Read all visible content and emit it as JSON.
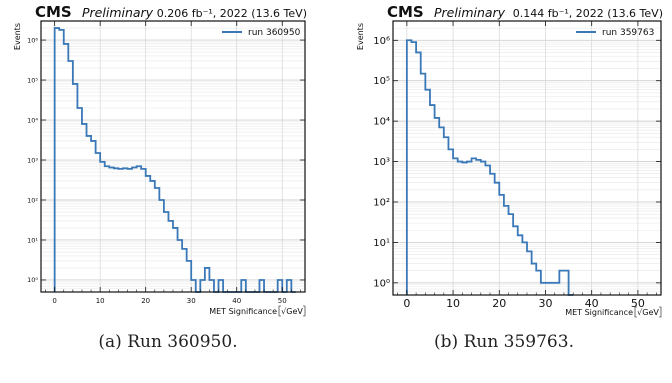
{
  "chart_data": [
    {
      "type": "histogram",
      "experiment_label": "CMS",
      "status_label": "Preliminary",
      "lumi_label": "0.206 fb⁻¹, 2022 (13.6 TeV)",
      "title": "",
      "xlabel": "MET Significance",
      "xlabel_unit": "√GeV",
      "ylabel": "Events",
      "yscale": "log",
      "xlim": [
        -3,
        55
      ],
      "ylim": [
        0.5,
        3000000
      ],
      "x_ticks": [
        0,
        10,
        20,
        30,
        40,
        50
      ],
      "y_ticks": [
        1,
        10,
        100,
        1000,
        10000,
        100000,
        1000000
      ],
      "y_tick_labels": [
        "10⁰",
        "10¹",
        "10²",
        "10³",
        "10⁴",
        "10⁵",
        "10⁶"
      ],
      "grid": true,
      "legend_position": "top-right",
      "bin_width": 1,
      "series": [
        {
          "name": "run 360950",
          "color": "#3a78b8",
          "bin_edges_start": 0,
          "values": [
            2000000,
            1800000,
            800000,
            300000,
            80000,
            20000,
            8000,
            4000,
            3000,
            1500,
            900,
            700,
            650,
            620,
            600,
            620,
            600,
            650,
            700,
            600,
            400,
            300,
            200,
            100,
            50,
            30,
            20,
            10,
            6,
            3,
            1,
            0,
            1,
            2,
            1,
            0,
            1,
            0,
            0,
            0,
            0,
            1,
            0,
            0,
            0,
            1,
            0,
            0,
            0,
            1,
            0,
            1,
            0
          ]
        }
      ]
    },
    {
      "type": "histogram",
      "experiment_label": "CMS",
      "status_label": "Preliminary",
      "lumi_label": "0.144 fb⁻¹, 2022 (13.6 TeV)",
      "title": "",
      "xlabel": "MET Significance",
      "xlabel_unit": "√GeV",
      "ylabel": "Events",
      "yscale": "log",
      "xlim": [
        -3,
        55
      ],
      "ylim": [
        0.5,
        3000000
      ],
      "x_ticks": [
        0,
        10,
        20,
        30,
        40,
        50
      ],
      "y_ticks": [
        1,
        10,
        100,
        1000,
        10000,
        100000,
        1000000
      ],
      "y_tick_labels": [
        "10⁰",
        "10¹",
        "10²",
        "10³",
        "10⁴",
        "10⁵",
        "10⁶"
      ],
      "grid": true,
      "legend_position": "top-right",
      "bin_width": 1,
      "series": [
        {
          "name": "run 359763",
          "color": "#3a78b8",
          "bin_edges_start": 0,
          "values": [
            1000000,
            900000,
            500000,
            150000,
            60000,
            25000,
            12000,
            7000,
            4000,
            2000,
            1200,
            1000,
            950,
            1000,
            1200,
            1100,
            1000,
            800,
            500,
            300,
            150,
            80,
            50,
            25,
            15,
            10,
            6,
            3,
            2,
            1,
            1,
            1,
            1,
            2,
            2,
            0
          ]
        }
      ]
    }
  ],
  "captions": [
    "(a) Run 360950.",
    "(b) Run 359763."
  ]
}
